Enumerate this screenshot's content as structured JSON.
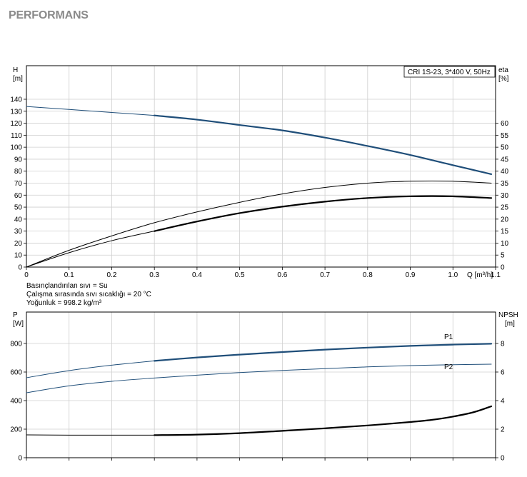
{
  "page": {
    "heading": "PERFORMANS"
  },
  "chart_data": [
    {
      "type": "line",
      "title": "",
      "legend_box": "CRI 1S-23, 3*400 V, 50Hz",
      "xlabel": "Q [m³/h]",
      "x_ticks": [
        "0",
        "0.1",
        "0.2",
        "0.3",
        "0.4",
        "0.5",
        "0.6",
        "0.7",
        "0.8",
        "0.9",
        "1.0",
        "1.1"
      ],
      "xlim": [
        0,
        1.1
      ],
      "ylabel_left": [
        "H",
        "[m]"
      ],
      "ylim_left": [
        0,
        140
      ],
      "y_ticks_left": [
        "0",
        "10",
        "20",
        "30",
        "40",
        "50",
        "60",
        "70",
        "80",
        "90",
        "100",
        "110",
        "120",
        "130",
        "140"
      ],
      "ylabel_right": [
        "eta",
        "[%]"
      ],
      "ylim_right": [
        0,
        70
      ],
      "y_ticks_right": [
        "0",
        "5",
        "10",
        "15",
        "20",
        "25",
        "30",
        "35",
        "40",
        "45",
        "50",
        "55",
        "60"
      ],
      "grid": true,
      "series": [
        {
          "name": "",
          "axis": "left",
          "color": "#1f4e79",
          "style": "thin",
          "x": [
            0,
            0.1,
            0.2,
            0.3
          ],
          "y": [
            134,
            131.5,
            129,
            126.5
          ]
        },
        {
          "name": "",
          "axis": "left",
          "color": "#1f4e79",
          "style": "thick",
          "x": [
            0.3,
            0.4,
            0.5,
            0.6,
            0.7,
            0.8,
            0.9,
            1.0,
            1.09
          ],
          "y": [
            126.5,
            123,
            118.5,
            114,
            108,
            101,
            93.5,
            85,
            77.5
          ]
        },
        {
          "name": "",
          "axis": "right",
          "color": "#000000",
          "style": "thin",
          "x": [
            0,
            0.1,
            0.2,
            0.3,
            0.4,
            0.5,
            0.6,
            0.7,
            0.8,
            0.9,
            1.0,
            1.09
          ],
          "y": [
            0,
            7,
            13,
            18.5,
            23,
            27,
            30.5,
            33.2,
            35,
            35.8,
            35.8,
            35
          ]
        },
        {
          "name": "",
          "axis": "right",
          "color": "#000000",
          "style": "thin",
          "x": [
            0,
            0.1,
            0.2,
            0.3
          ],
          "y": [
            0,
            6,
            11,
            15
          ]
        },
        {
          "name": "",
          "axis": "right",
          "color": "#000000",
          "style": "thick",
          "x": [
            0.3,
            0.4,
            0.5,
            0.6,
            0.7,
            0.8,
            0.9,
            1.0,
            1.09
          ],
          "y": [
            15,
            19,
            22.5,
            25.2,
            27.3,
            28.8,
            29.5,
            29.5,
            28.8
          ]
        }
      ]
    },
    {
      "type": "line",
      "title": "",
      "xlim": [
        0,
        1.1
      ],
      "ylabel_left": [
        "P",
        "[W]"
      ],
      "ylim_left": [
        0,
        900
      ],
      "y_ticks_left": [
        "0",
        "200",
        "400",
        "600",
        "800"
      ],
      "ylabel_right": [
        "NPSH",
        "[m]"
      ],
      "ylim_right": [
        0,
        9
      ],
      "y_ticks_right": [
        "0",
        "2",
        "4",
        "6",
        "8"
      ],
      "grid": true,
      "series": [
        {
          "name": "P1",
          "axis": "left",
          "color": "#1f4e79",
          "style": "thin",
          "x": [
            0,
            0.1,
            0.2,
            0.3
          ],
          "y": [
            560,
            610,
            648,
            678
          ]
        },
        {
          "name": "P1",
          "axis": "left",
          "color": "#1f4e79",
          "style": "thick",
          "x": [
            0.3,
            0.4,
            0.5,
            0.6,
            0.7,
            0.8,
            0.9,
            1.0,
            1.09
          ],
          "y": [
            678,
            702,
            722,
            740,
            757,
            771,
            783,
            792,
            798
          ]
        },
        {
          "name": "P2",
          "axis": "left",
          "color": "#1f4e79",
          "style": "thin",
          "x": [
            0,
            0.1,
            0.2,
            0.3,
            0.4,
            0.5,
            0.6,
            0.7,
            0.8,
            0.9,
            1.0,
            1.09
          ],
          "y": [
            455,
            503,
            535,
            558,
            578,
            596,
            611,
            624,
            636,
            645,
            651,
            655
          ]
        },
        {
          "name": "",
          "axis": "right",
          "color": "#000000",
          "style": "thin",
          "x": [
            0,
            0.1,
            0.2,
            0.3
          ],
          "y": [
            1.6,
            1.58,
            1.58,
            1.58
          ]
        },
        {
          "name": "",
          "axis": "right",
          "color": "#000000",
          "style": "thick",
          "x": [
            0.3,
            0.4,
            0.5,
            0.6,
            0.7,
            0.8,
            0.9,
            0.95,
            1.0,
            1.05,
            1.09
          ],
          "y": [
            1.58,
            1.62,
            1.72,
            1.88,
            2.06,
            2.26,
            2.5,
            2.65,
            2.88,
            3.2,
            3.6
          ]
        }
      ]
    }
  ],
  "notes": [
    "Basınçlandırılan sıvı = Su",
    "Çalışma sırasında sıvı sıcaklığı = 20 °C",
    "Yoğunluk = 998.2 kg/m³"
  ]
}
